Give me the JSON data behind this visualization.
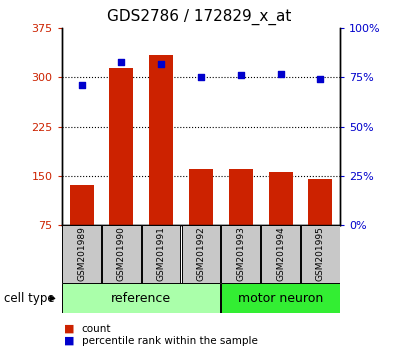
{
  "title": "GDS2786 / 172829_x_at",
  "samples": [
    "GSM201989",
    "GSM201990",
    "GSM201991",
    "GSM201992",
    "GSM201993",
    "GSM201994",
    "GSM201995"
  ],
  "counts": [
    135,
    315,
    335,
    160,
    160,
    155,
    145
  ],
  "percentiles": [
    71,
    83,
    82,
    75,
    76,
    77,
    74
  ],
  "ylim_left": [
    75,
    375
  ],
  "ylim_right": [
    0,
    100
  ],
  "yticks_left": [
    75,
    150,
    225,
    300,
    375
  ],
  "ytick_labels_left": [
    "75",
    "150",
    "225",
    "300",
    "375"
  ],
  "yticks_right": [
    0,
    25,
    50,
    75,
    100
  ],
  "ytick_labels_right": [
    "0%",
    "25%",
    "50%",
    "75%",
    "100%"
  ],
  "bar_color": "#cc2200",
  "dot_color": "#0000cc",
  "label_color_left": "#cc2200",
  "label_color_right": "#0000cc",
  "legend_count_label": "count",
  "legend_pct_label": "percentile rank within the sample",
  "cell_type_label": "cell type",
  "bar_width": 0.6,
  "tick_fontsize": 8,
  "title_fontsize": 11,
  "group_ref_color": "#aaffaa",
  "group_motor_color": "#33ee33",
  "gray_color": "#c8c8c8",
  "group_info": [
    {
      "label": "reference",
      "start": 0,
      "end": 3,
      "color": "#aaffaa"
    },
    {
      "label": "motor neuron",
      "start": 4,
      "end": 6,
      "color": "#33ee33"
    }
  ]
}
